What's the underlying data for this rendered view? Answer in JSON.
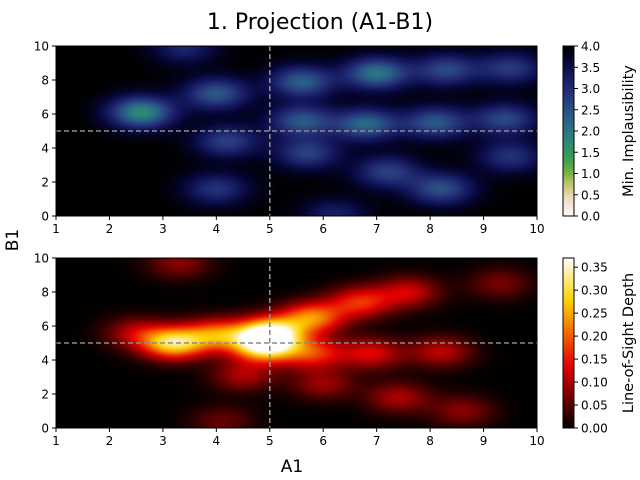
{
  "figure_title": "1. Projection (A1-B1)",
  "shared_xlabel": "A1",
  "shared_ylabel": "B1",
  "chart_data": [
    {
      "type": "heatmap",
      "panel": "top",
      "xlim": [
        1,
        10
      ],
      "ylim": [
        0,
        10
      ],
      "xticks": [
        "1",
        "2",
        "3",
        "4",
        "5",
        "6",
        "7",
        "8",
        "9",
        "10"
      ],
      "yticks": [
        "0",
        "2",
        "4",
        "6",
        "8",
        "10"
      ],
      "reference_lines": {
        "x": 5,
        "y": 5,
        "style": "dashed",
        "color": "#8c8c8c"
      },
      "colorbar": {
        "label": "Min. Implausibility",
        "range": [
          0.0,
          4.0
        ],
        "ticks": [
          "0.0",
          "0.5",
          "1.0",
          "1.5",
          "2.0",
          "2.5",
          "3.0",
          "3.5",
          "4.0"
        ],
        "colormap": "gist_earth_r"
      },
      "blobs": [
        {
          "x": 2.6,
          "y": 6.1,
          "a": 2.3
        },
        {
          "x": 4.0,
          "y": 7.2,
          "a": 1.6
        },
        {
          "x": 5.6,
          "y": 7.9,
          "a": 1.7
        },
        {
          "x": 7.0,
          "y": 8.4,
          "a": 2.0
        },
        {
          "x": 8.3,
          "y": 8.6,
          "a": 1.4
        },
        {
          "x": 9.5,
          "y": 8.7,
          "a": 1.2
        },
        {
          "x": 4.2,
          "y": 4.4,
          "a": 1.3
        },
        {
          "x": 5.6,
          "y": 5.6,
          "a": 1.6
        },
        {
          "x": 6.8,
          "y": 5.4,
          "a": 1.8
        },
        {
          "x": 8.1,
          "y": 5.5,
          "a": 1.6
        },
        {
          "x": 9.4,
          "y": 5.7,
          "a": 1.4
        },
        {
          "x": 5.7,
          "y": 3.7,
          "a": 1.3
        },
        {
          "x": 7.2,
          "y": 2.6,
          "a": 1.3
        },
        {
          "x": 8.2,
          "y": 1.6,
          "a": 1.5
        },
        {
          "x": 9.5,
          "y": 3.5,
          "a": 1.1
        },
        {
          "x": 4.0,
          "y": 1.6,
          "a": 1.1
        },
        {
          "x": 3.4,
          "y": 9.9,
          "a": 0.9
        },
        {
          "x": 6.2,
          "y": 0.1,
          "a": 0.8
        }
      ]
    },
    {
      "type": "heatmap",
      "panel": "bottom",
      "xlim": [
        1,
        10
      ],
      "ylim": [
        0,
        10
      ],
      "xticks": [
        "1",
        "2",
        "3",
        "4",
        "5",
        "6",
        "7",
        "8",
        "9",
        "10"
      ],
      "yticks": [
        "0",
        "2",
        "4",
        "6",
        "8",
        "10"
      ],
      "reference_lines": {
        "x": 5,
        "y": 5,
        "style": "dashed",
        "color": "#8c8c8c"
      },
      "colorbar": {
        "label": "Line-of-Sight Depth",
        "range": [
          0.0,
          0.37
        ],
        "ticks": [
          "0.00",
          "0.05",
          "0.10",
          "0.15",
          "0.20",
          "0.25",
          "0.30",
          "0.35"
        ],
        "colormap": "hot"
      },
      "blobs": [
        {
          "x": 3.2,
          "y": 5.0,
          "a": 0.3
        },
        {
          "x": 4.0,
          "y": 5.5,
          "a": 0.2
        },
        {
          "x": 5.0,
          "y": 5.6,
          "a": 0.34
        },
        {
          "x": 4.9,
          "y": 4.8,
          "a": 0.3
        },
        {
          "x": 5.8,
          "y": 6.5,
          "a": 0.22
        },
        {
          "x": 6.7,
          "y": 7.4,
          "a": 0.16
        },
        {
          "x": 7.6,
          "y": 8.0,
          "a": 0.12
        },
        {
          "x": 5.8,
          "y": 4.4,
          "a": 0.16
        },
        {
          "x": 6.9,
          "y": 4.4,
          "a": 0.13
        },
        {
          "x": 8.2,
          "y": 4.5,
          "a": 0.11
        },
        {
          "x": 4.5,
          "y": 3.1,
          "a": 0.1
        },
        {
          "x": 6.0,
          "y": 2.6,
          "a": 0.09
        },
        {
          "x": 7.4,
          "y": 1.8,
          "a": 0.1
        },
        {
          "x": 8.6,
          "y": 1.0,
          "a": 0.08
        },
        {
          "x": 2.5,
          "y": 5.6,
          "a": 0.1
        },
        {
          "x": 3.3,
          "y": 9.7,
          "a": 0.08
        },
        {
          "x": 9.3,
          "y": 8.5,
          "a": 0.07
        },
        {
          "x": 4.1,
          "y": 0.4,
          "a": 0.06
        }
      ]
    }
  ]
}
